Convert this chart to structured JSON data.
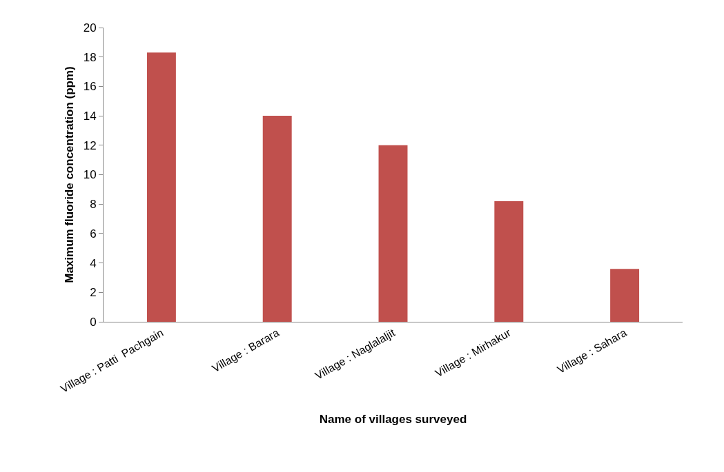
{
  "chart_data": {
    "type": "bar",
    "xlabel": "Name of villages surveyed",
    "ylabel": "Maximum fluoride concentration (ppm)",
    "categories": [
      "Village : Patti  Pachgain",
      "Village : Barara",
      "Village : Naglalaljit",
      "Village : Mirhakur",
      "Village : Sahara"
    ],
    "values": [
      18.3,
      14,
      12,
      8.2,
      3.6
    ],
    "color": "#c0504d",
    "ylim": [
      0,
      20
    ],
    "yticks": [
      0,
      2,
      4,
      6,
      8,
      10,
      12,
      14,
      16,
      18,
      20
    ],
    "grid": false
  }
}
